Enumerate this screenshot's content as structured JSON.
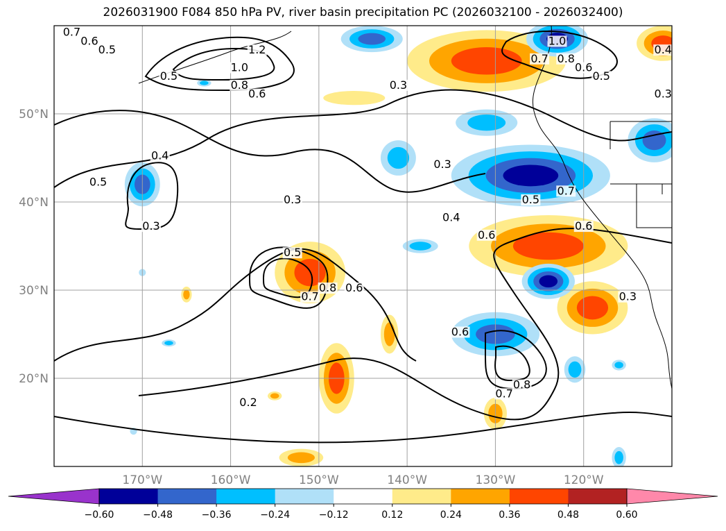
{
  "title": "2026031900 F084 850 hPa PV, river basin precipitation PC (2026032100 - 2026032400)",
  "map": {
    "lon_range": [
      180,
      110
    ],
    "lat_range": [
      10,
      60
    ],
    "lat_ticks": [
      {
        "lat": 50,
        "label": "50°N"
      },
      {
        "lat": 40,
        "label": "40°N"
      },
      {
        "lat": 30,
        "label": "30°N"
      },
      {
        "lat": 20,
        "label": "20°N"
      }
    ],
    "lon_ticks": [
      {
        "lon": 170,
        "label": "170°W"
      },
      {
        "lon": 160,
        "label": "160°W"
      },
      {
        "lon": 150,
        "label": "150°W"
      },
      {
        "lon": 140,
        "label": "140°W"
      },
      {
        "lon": 130,
        "label": "130°W"
      },
      {
        "lon": 120,
        "label": "120°W"
      }
    ],
    "grid": true,
    "pv_contour_labels": [
      {
        "text": "0.7",
        "lon": 178,
        "lat": 59
      },
      {
        "text": "0.6",
        "lon": 176,
        "lat": 58
      },
      {
        "text": "0.5",
        "lon": 174,
        "lat": 57
      },
      {
        "text": "0.5",
        "lon": 167,
        "lat": 54
      },
      {
        "text": "1.0",
        "lon": 159,
        "lat": 55
      },
      {
        "text": "0.8",
        "lon": 159,
        "lat": 53
      },
      {
        "text": "0.6",
        "lon": 157,
        "lat": 52
      },
      {
        "text": "1.2",
        "lon": 157,
        "lat": 57
      },
      {
        "text": "0.3",
        "lon": 141,
        "lat": 53
      },
      {
        "text": "0.5",
        "lon": 175,
        "lat": 42
      },
      {
        "text": "0.4",
        "lon": 168,
        "lat": 45
      },
      {
        "text": "0.3",
        "lon": 169,
        "lat": 37
      },
      {
        "text": "0.3",
        "lon": 153,
        "lat": 40
      },
      {
        "text": "0.3",
        "lon": 136,
        "lat": 44
      },
      {
        "text": "0.4",
        "lon": 135,
        "lat": 38
      },
      {
        "text": "0.6",
        "lon": 131,
        "lat": 36
      },
      {
        "text": "0.5",
        "lon": 153,
        "lat": 34
      },
      {
        "text": "0.8",
        "lon": 149,
        "lat": 30
      },
      {
        "text": "0.7",
        "lon": 151,
        "lat": 29
      },
      {
        "text": "0.6",
        "lon": 146,
        "lat": 30
      },
      {
        "text": "0.6",
        "lon": 134,
        "lat": 25
      },
      {
        "text": "0.8",
        "lon": 127,
        "lat": 19
      },
      {
        "text": "0.7",
        "lon": 129,
        "lat": 18
      },
      {
        "text": "0.2",
        "lon": 158,
        "lat": 17
      },
      {
        "text": "0.5",
        "lon": 126,
        "lat": 40
      },
      {
        "text": "0.7",
        "lon": 122,
        "lat": 41
      },
      {
        "text": "0.6",
        "lon": 120,
        "lat": 37
      },
      {
        "text": "0.3",
        "lon": 115,
        "lat": 29
      },
      {
        "text": "1.0",
        "lon": 123,
        "lat": 58
      },
      {
        "text": "0.7",
        "lon": 125,
        "lat": 56
      },
      {
        "text": "0.8",
        "lon": 122,
        "lat": 56
      },
      {
        "text": "0.6",
        "lon": 120,
        "lat": 55
      },
      {
        "text": "0.5",
        "lon": 118,
        "lat": 54
      },
      {
        "text": "0.4",
        "lon": 111,
        "lat": 57
      },
      {
        "text": "0.3",
        "lon": 111,
        "lat": 52
      }
    ],
    "precip_blobs": [
      {
        "lon": 131,
        "lat": 56,
        "rx": 9,
        "ry": 3.5,
        "level": 0.45
      },
      {
        "lon": 146,
        "lat": 51.8,
        "rx": 3.5,
        "ry": 0.8,
        "level": 0.2
      },
      {
        "lon": 151,
        "lat": 32,
        "rx": 4,
        "ry": 3.5,
        "level": 0.36
      },
      {
        "lon": 124,
        "lat": 35,
        "rx": 9,
        "ry": 3.5,
        "level": 0.45
      },
      {
        "lon": 119,
        "lat": 28,
        "rx": 4,
        "ry": 3,
        "level": 0.36
      },
      {
        "lon": 148,
        "lat": 20,
        "rx": 2,
        "ry": 4,
        "level": 0.36
      },
      {
        "lon": 142,
        "lat": 25,
        "rx": 1,
        "ry": 2.2,
        "level": 0.24
      },
      {
        "lon": 130,
        "lat": 16,
        "rx": 1.3,
        "ry": 1.8,
        "level": 0.24
      },
      {
        "lon": 152,
        "lat": 11,
        "rx": 2.5,
        "ry": 1,
        "level": 0.24
      },
      {
        "lon": 165,
        "lat": 29.5,
        "rx": 0.6,
        "ry": 0.9,
        "level": 0.24
      },
      {
        "lon": 155,
        "lat": 18,
        "rx": 0.8,
        "ry": 0.5,
        "level": 0.24
      },
      {
        "lon": 111,
        "lat": 58,
        "rx": 3,
        "ry": 2,
        "level": 0.36
      },
      {
        "lon": 126,
        "lat": 43,
        "rx": 9,
        "ry": 3.5,
        "level": -0.48
      },
      {
        "lon": 130,
        "lat": 25,
        "rx": 5,
        "ry": 2.5,
        "level": -0.36
      },
      {
        "lon": 124,
        "lat": 31,
        "rx": 3,
        "ry": 2,
        "level": -0.48
      },
      {
        "lon": 123,
        "lat": 58.5,
        "rx": 3.5,
        "ry": 2,
        "level": -0.48
      },
      {
        "lon": 144,
        "lat": 58.5,
        "rx": 3.5,
        "ry": 1.5,
        "level": -0.36
      },
      {
        "lon": 170,
        "lat": 42,
        "rx": 2,
        "ry": 2.5,
        "level": -0.36
      },
      {
        "lon": 112,
        "lat": 47,
        "rx": 3,
        "ry": 2.5,
        "level": -0.36
      },
      {
        "lon": 131,
        "lat": 49,
        "rx": 3.5,
        "ry": 1.5,
        "level": -0.24
      },
      {
        "lon": 141,
        "lat": 45,
        "rx": 2,
        "ry": 2,
        "level": -0.24
      },
      {
        "lon": 121,
        "lat": 21,
        "rx": 1.2,
        "ry": 1.5,
        "level": -0.24
      },
      {
        "lon": 138.5,
        "lat": 35,
        "rx": 2,
        "ry": 0.8,
        "level": -0.24
      },
      {
        "lon": 116,
        "lat": 11,
        "rx": 0.8,
        "ry": 1.2,
        "level": -0.24
      },
      {
        "lon": 116,
        "lat": 21.5,
        "rx": 0.8,
        "ry": 0.6,
        "level": -0.24
      },
      {
        "lon": 163,
        "lat": 53.5,
        "rx": 0.8,
        "ry": 0.4,
        "level": -0.24
      },
      {
        "lon": 167,
        "lat": 24,
        "rx": 0.8,
        "ry": 0.4,
        "level": -0.24
      },
      {
        "lon": 170,
        "lat": 32,
        "rx": 0.4,
        "ry": 0.4,
        "level": -0.12
      },
      {
        "lon": 171,
        "lat": 14,
        "rx": 0.4,
        "ry": 0.4,
        "level": -0.12
      }
    ]
  },
  "colorbar": {
    "bounds": [
      -0.6,
      -0.48,
      -0.36,
      -0.24,
      -0.12,
      0.12,
      0.24,
      0.36,
      0.48,
      0.6
    ],
    "tick_labels": [
      "−0.60",
      "−0.48",
      "−0.36",
      "−0.24",
      "−0.12",
      "0.12",
      "0.24",
      "0.36",
      "0.48",
      "0.60"
    ],
    "colors": [
      "#9933cc",
      "#000099",
      "#3366cc",
      "#00bfff",
      "#b0e0f8",
      "#ffffff",
      "#ffeb8a",
      "#ffa500",
      "#ff4500",
      "#b22222",
      "#ff88aa"
    ],
    "extend": "both"
  }
}
